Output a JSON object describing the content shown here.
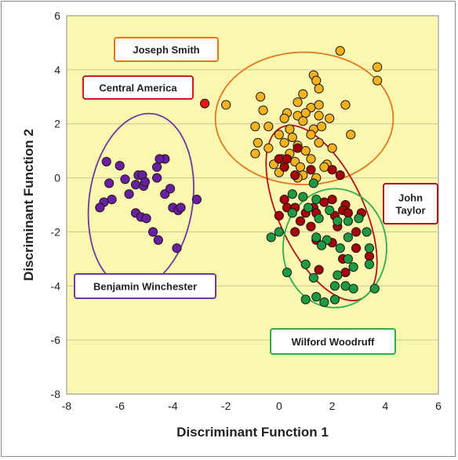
{
  "chart_data": {
    "type": "scatter",
    "xlabel": "Discriminant Function 1",
    "ylabel": "Discriminant Function 2",
    "xlim": [
      -8,
      6
    ],
    "ylim": [
      -8,
      6
    ],
    "x_ticks": [
      "-8",
      "-6",
      "-4",
      "-2",
      "0",
      "2",
      "4",
      "6"
    ],
    "y_ticks": [
      "-8",
      "-6",
      "-4",
      "-2",
      "0",
      "2",
      "4",
      "6"
    ],
    "grid": "horizontal",
    "background_color": "#fbf7b0",
    "series": [
      {
        "name": "Joseph Smith",
        "color": "#f5b21e",
        "points": [
          [
            2.3,
            4.7
          ],
          [
            3.7,
            4.1
          ],
          [
            3.7,
            3.6
          ],
          [
            1.3,
            3.8
          ],
          [
            1.4,
            3.6
          ],
          [
            1.5,
            3.3
          ],
          [
            0.9,
            3.1
          ],
          [
            -0.7,
            3.0
          ],
          [
            0.7,
            2.8
          ],
          [
            1.2,
            2.6
          ],
          [
            1.5,
            2.7
          ],
          [
            2.5,
            2.7
          ],
          [
            -2.0,
            2.7
          ],
          [
            -0.6,
            2.5
          ],
          [
            0.3,
            2.4
          ],
          [
            0.7,
            2.3
          ],
          [
            1.0,
            2.4
          ],
          [
            1.5,
            2.3
          ],
          [
            0.2,
            2.2
          ],
          [
            0.9,
            2.1
          ],
          [
            1.9,
            2.2
          ],
          [
            -0.9,
            1.9
          ],
          [
            -0.4,
            1.9
          ],
          [
            0.4,
            1.8
          ],
          [
            1.3,
            1.8
          ],
          [
            1.6,
            1.9
          ],
          [
            0.0,
            1.6
          ],
          [
            0.5,
            1.5
          ],
          [
            1.2,
            1.6
          ],
          [
            2.7,
            1.6
          ],
          [
            -0.8,
            1.3
          ],
          [
            0.2,
            1.3
          ],
          [
            0.7,
            1.2
          ],
          [
            1.5,
            1.3
          ],
          [
            2.0,
            1.1
          ],
          [
            -0.4,
            1.1
          ],
          [
            0.4,
            0.9
          ],
          [
            1.0,
            1.0
          ],
          [
            -0.9,
            0.9
          ],
          [
            0.1,
            0.7
          ],
          [
            0.6,
            0.6
          ],
          [
            1.2,
            0.7
          ],
          [
            -0.2,
            0.5
          ],
          [
            0.8,
            0.4
          ],
          [
            1.8,
            0.5
          ],
          [
            0.0,
            0.2
          ],
          [
            1.7,
            0.4
          ],
          [
            0.9,
            0.1
          ],
          [
            1.4,
            0.0
          ],
          [
            0.7,
            0.0
          ]
        ]
      },
      {
        "name": "Central America",
        "color": "#e8141c",
        "points": [
          [
            -2.8,
            2.75
          ]
        ]
      },
      {
        "name": "John Taylor",
        "color": "#a80008",
        "points": [
          [
            0.7,
            1.1
          ],
          [
            0.0,
            0.7
          ],
          [
            0.3,
            0.7
          ],
          [
            0.2,
            0.4
          ],
          [
            0.6,
            0.1
          ],
          [
            1.2,
            0.3
          ],
          [
            2.0,
            0.3
          ],
          [
            2.3,
            0.1
          ],
          [
            2.0,
            -0.8
          ],
          [
            2.5,
            -1.0
          ],
          [
            1.3,
            -1.1
          ],
          [
            2.4,
            -1.2
          ],
          [
            0.3,
            -1.1
          ],
          [
            0.6,
            -1.1
          ],
          [
            1.4,
            -1.3
          ],
          [
            2.1,
            -1.4
          ],
          [
            2.6,
            -1.3
          ],
          [
            3.1,
            -1.3
          ],
          [
            0.0,
            -1.4
          ],
          [
            0.8,
            -1.6
          ],
          [
            2.2,
            -1.8
          ],
          [
            1.2,
            -1.8
          ],
          [
            0.6,
            -2.0
          ],
          [
            2.9,
            -2.0
          ],
          [
            1.4,
            -2.3
          ],
          [
            2.0,
            -2.4
          ],
          [
            2.9,
            -2.6
          ],
          [
            3.4,
            -2.9
          ],
          [
            2.4,
            -3.0
          ],
          [
            1.5,
            -3.4
          ],
          [
            2.5,
            -3.5
          ],
          [
            1.0,
            -1.3
          ],
          [
            0.2,
            -0.8
          ],
          [
            1.7,
            -0.9
          ]
        ]
      },
      {
        "name": "Wilford Woodruff",
        "color": "#1e9a40",
        "points": [
          [
            0.5,
            -0.6
          ],
          [
            0.9,
            -0.7
          ],
          [
            1.4,
            -0.8
          ],
          [
            1.1,
            -1.1
          ],
          [
            1.9,
            -1.2
          ],
          [
            0.5,
            -1.3
          ],
          [
            1.5,
            -1.5
          ],
          [
            2.2,
            -1.6
          ],
          [
            2.6,
            -1.6
          ],
          [
            3.0,
            -1.5
          ],
          [
            0.0,
            -2.0
          ],
          [
            -0.3,
            -2.2
          ],
          [
            1.4,
            -2.2
          ],
          [
            1.8,
            -2.3
          ],
          [
            2.6,
            -2.2
          ],
          [
            3.3,
            -2.0
          ],
          [
            1.6,
            -2.5
          ],
          [
            2.3,
            -2.6
          ],
          [
            3.4,
            -2.6
          ],
          [
            2.6,
            -3.0
          ],
          [
            2.8,
            -3.3
          ],
          [
            0.3,
            -3.5
          ],
          [
            1.3,
            -3.7
          ],
          [
            2.2,
            -3.6
          ],
          [
            3.4,
            -3.2
          ],
          [
            1.0,
            -3.2
          ],
          [
            2.1,
            -4.0
          ],
          [
            2.5,
            -4.0
          ],
          [
            2.8,
            -4.1
          ],
          [
            3.6,
            -4.1
          ],
          [
            1.0,
            -4.5
          ],
          [
            1.4,
            -4.4
          ],
          [
            1.7,
            -4.6
          ],
          [
            2.1,
            -4.5
          ],
          [
            1.3,
            -0.2
          ]
        ]
      },
      {
        "name": "Benjamin Winchester",
        "color": "#6a1fa2",
        "points": [
          [
            -6.5,
            0.6
          ],
          [
            -6.0,
            0.45
          ],
          [
            -6.4,
            -0.2
          ],
          [
            -5.3,
            0.1
          ],
          [
            -4.6,
            0.4
          ],
          [
            -4.3,
            0.7
          ],
          [
            -4.5,
            0.7
          ],
          [
            -5.8,
            -0.05
          ],
          [
            -5.4,
            -0.25
          ],
          [
            -5.1,
            -0.3
          ],
          [
            -5.15,
            0.1
          ],
          [
            -5.05,
            -0.15
          ],
          [
            -4.6,
            0.0
          ],
          [
            -6.6,
            -0.9
          ],
          [
            -6.3,
            -0.8
          ],
          [
            -5.65,
            -0.6
          ],
          [
            -4.3,
            -0.6
          ],
          [
            -4.1,
            -0.4
          ],
          [
            -4.0,
            -1.1
          ],
          [
            -3.8,
            -1.2
          ],
          [
            -3.7,
            -1.1
          ],
          [
            -3.1,
            -0.8
          ],
          [
            -6.75,
            -1.1
          ],
          [
            -5.4,
            -1.3
          ],
          [
            -5.2,
            -1.45
          ],
          [
            -5.0,
            -1.5
          ],
          [
            -4.75,
            -2.0
          ],
          [
            -4.55,
            -2.3
          ],
          [
            -3.85,
            -2.6
          ]
        ]
      }
    ],
    "ellipses": [
      {
        "name": "Joseph Smith",
        "cx": 0.95,
        "cy": 2.2,
        "rx": 3.35,
        "ry": 2.45,
        "angle": 0,
        "color": "#e3781a"
      },
      {
        "name": "John Taylor",
        "cx": 1.6,
        "cy": -1.3,
        "rx": 1.6,
        "ry": 3.5,
        "angle": 25,
        "color": "#b11116"
      },
      {
        "name": "Wilford Woodruff",
        "cx": 2.1,
        "cy": -2.6,
        "rx": 1.95,
        "ry": 2.2,
        "angle": 0,
        "color": "#2fae4c"
      },
      {
        "name": "Benjamin Winchester",
        "cx": -5.2,
        "cy": -0.85,
        "rx": 1.95,
        "ry": 3.25,
        "angle": -8,
        "color": "#6a3aa0"
      }
    ],
    "annotations": [
      {
        "text": "Joseph Smith",
        "color": "#e3781a"
      },
      {
        "text": "Central America",
        "color": "#cf1a20"
      },
      {
        "text": "John Taylor",
        "lines": [
          "John",
          "Taylor"
        ],
        "color": "#b11116"
      },
      {
        "text": "Benjamin Winchester",
        "color": "#6a3aa0"
      },
      {
        "text": "Wilford Woodruff",
        "color": "#2fae4c"
      }
    ]
  }
}
